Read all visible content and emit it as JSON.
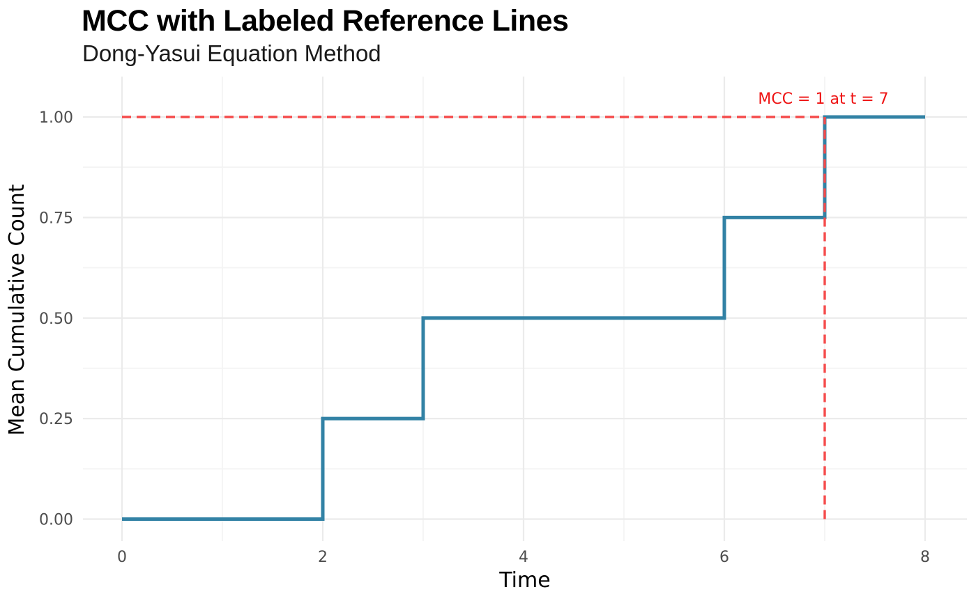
{
  "header": {
    "title": "MCC with Labeled Reference Lines",
    "subtitle": "Dong-Yasui Equation Method"
  },
  "chart_data": {
    "type": "line",
    "variant": "step-after",
    "title": "MCC with Labeled Reference Lines",
    "subtitle": "Dong-Yasui Equation Method",
    "xlabel": "Time",
    "ylabel": "Mean Cumulative Count",
    "x_axis": {
      "tick_values": [
        0,
        2,
        4,
        6,
        8
      ],
      "tick_labels": [
        "0",
        "2",
        "4",
        "6",
        "8"
      ],
      "minor_ticks": [
        1,
        3,
        5,
        7
      ],
      "range": [
        0,
        8
      ]
    },
    "y_axis": {
      "tick_values": [
        0,
        0.25,
        0.5,
        0.75,
        1.0
      ],
      "tick_labels": [
        "0.00",
        "0.25",
        "0.50",
        "0.75",
        "1.00"
      ],
      "minor_ticks": [
        0.125,
        0.375,
        0.625,
        0.875
      ],
      "range": [
        0,
        1
      ]
    },
    "grid": {
      "major": true,
      "minor": true
    },
    "legend": "none",
    "series": [
      {
        "name": "MCC",
        "points": [
          [
            0,
            0
          ],
          [
            2,
            0.25
          ],
          [
            3,
            0.5
          ],
          [
            6,
            0.75
          ],
          [
            7,
            1.0
          ],
          [
            8,
            1.0
          ]
        ],
        "color": "#3282a5",
        "style": "solid"
      }
    ],
    "reference": {
      "label": "MCC = 1 at t = 7",
      "point": {
        "t": 7,
        "mcc": 1
      },
      "h_line": {
        "y": 1,
        "from_x": 0,
        "to_x": 7
      },
      "v_line": {
        "x": 7,
        "from_y": 0,
        "to_y": 1
      },
      "style": "dashed"
    }
  },
  "colors": {
    "step_line": "#3282a5",
    "reference_line": "#f54b4b",
    "annotation_text": "#ee1414",
    "grid_major": "#ebebeb",
    "grid_minor": "#f4f4f4",
    "tick_label": "#4d4d4d",
    "axis_title": "#000000",
    "background": "#ffffff"
  }
}
